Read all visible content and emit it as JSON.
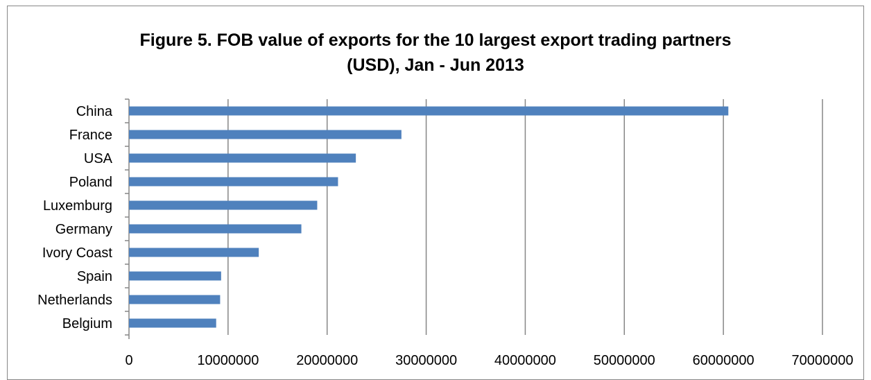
{
  "chart_data": {
    "type": "bar",
    "orientation": "horizontal",
    "title_line1": "Figure 5. FOB value of exports for the 10 largest export trading partners",
    "title_line2": "(USD), Jan - Jun 2013",
    "categories": [
      "China",
      "France",
      "USA",
      "Poland",
      "Luxemburg",
      "Germany",
      "Ivory Coast",
      "Spain",
      "Netherlands",
      "Belgium"
    ],
    "values": [
      60500000,
      27500000,
      22900000,
      21100000,
      19000000,
      17400000,
      13100000,
      9300000,
      9200000,
      8800000
    ],
    "xlim": [
      0,
      70000000
    ],
    "xticks": [
      "0",
      "10000000",
      "20000000",
      "30000000",
      "40000000",
      "50000000",
      "60000000",
      "70000000"
    ],
    "grid": true,
    "legend": "none",
    "bar_color": "#4F81BD",
    "grid_color": "#868686"
  }
}
